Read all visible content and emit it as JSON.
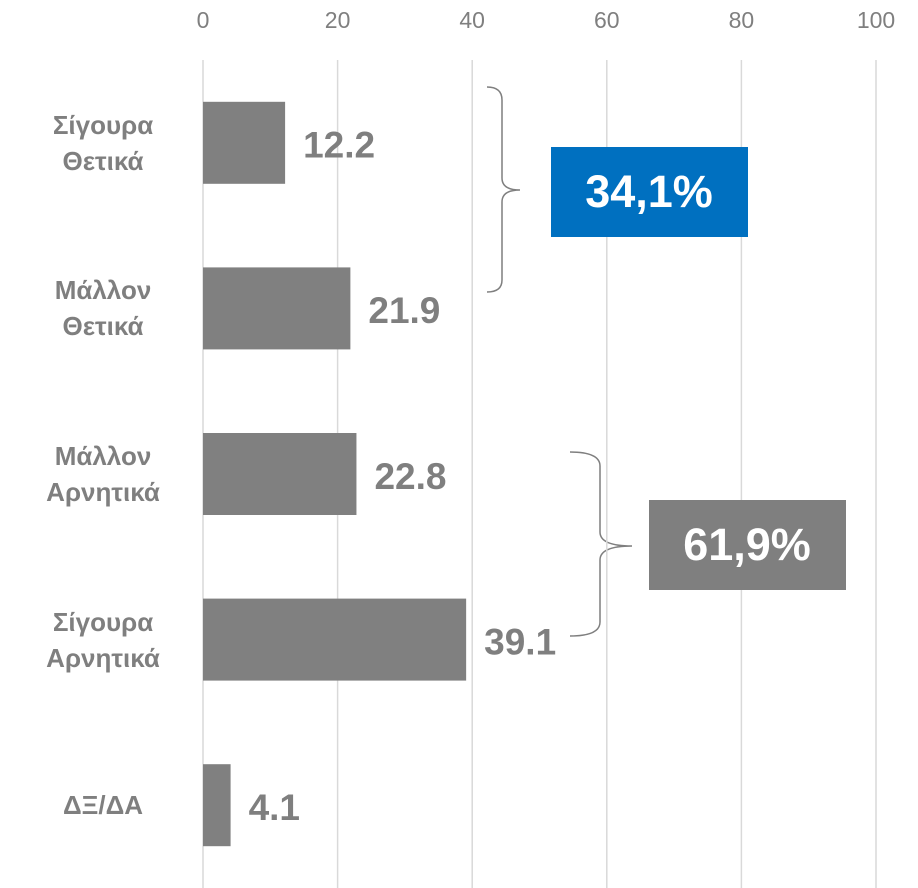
{
  "chart_data": {
    "type": "bar",
    "orientation": "horizontal",
    "categories": [
      "Σίγουρα Θετικά",
      "Μάλλον Θετικά",
      "Μάλλον Αρνητικά",
      "Σίγουρα Αρνητικά",
      "ΔΞ/ΔΑ"
    ],
    "values": [
      12.2,
      21.9,
      22.8,
      39.1,
      4.1
    ],
    "color": "#808080",
    "xlim": [
      0,
      100
    ],
    "xticks": [
      0,
      20,
      40,
      60,
      80,
      100
    ],
    "grid": true,
    "annotations": [
      {
        "text": "34,1%",
        "color": "#0070c0"
      },
      {
        "text": "61,9%",
        "color": "#7f7f7f"
      }
    ]
  }
}
